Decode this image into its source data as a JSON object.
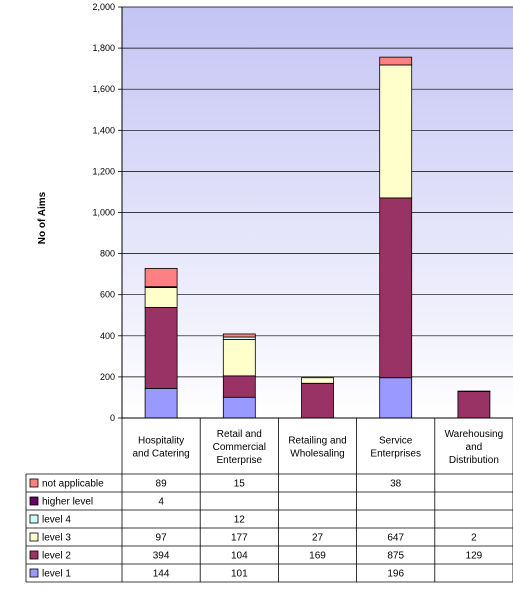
{
  "chart_data": {
    "type": "bar",
    "stacked": true,
    "ylabel": "No of Aims",
    "ylim": [
      0,
      2000
    ],
    "yticks": [
      "0",
      "200",
      "400",
      "600",
      "800",
      "1,000",
      "1,200",
      "1,400",
      "1,600",
      "1,800",
      "2,000"
    ],
    "categories": [
      [
        "Hospitality",
        "and Catering"
      ],
      [
        "Retail and",
        "Commercial",
        "Enterprise"
      ],
      [
        "Retailing and",
        "Wholesaling"
      ],
      [
        "Service",
        "Enterprises"
      ],
      [
        "Warehousing",
        "and",
        "Distribution"
      ]
    ],
    "series": [
      {
        "name": "level 1",
        "color": "#9999ff",
        "values": [
          144,
          101,
          null,
          196,
          null
        ]
      },
      {
        "name": "level 2",
        "color": "#993366",
        "values": [
          394,
          104,
          169,
          875,
          129
        ]
      },
      {
        "name": "level 3",
        "color": "#ffffcc",
        "values": [
          97,
          177,
          27,
          647,
          2
        ]
      },
      {
        "name": "level 4",
        "color": "#ccffff",
        "values": [
          null,
          12,
          null,
          null,
          null
        ]
      },
      {
        "name": "higher level",
        "color": "#660066",
        "values": [
          4,
          null,
          null,
          null,
          null
        ]
      },
      {
        "name": "not applicable",
        "color": "#ff8080",
        "values": [
          89,
          15,
          null,
          38,
          null
        ]
      }
    ],
    "plot_background": "#ccccff",
    "legend_placement": "data table below chart"
  }
}
